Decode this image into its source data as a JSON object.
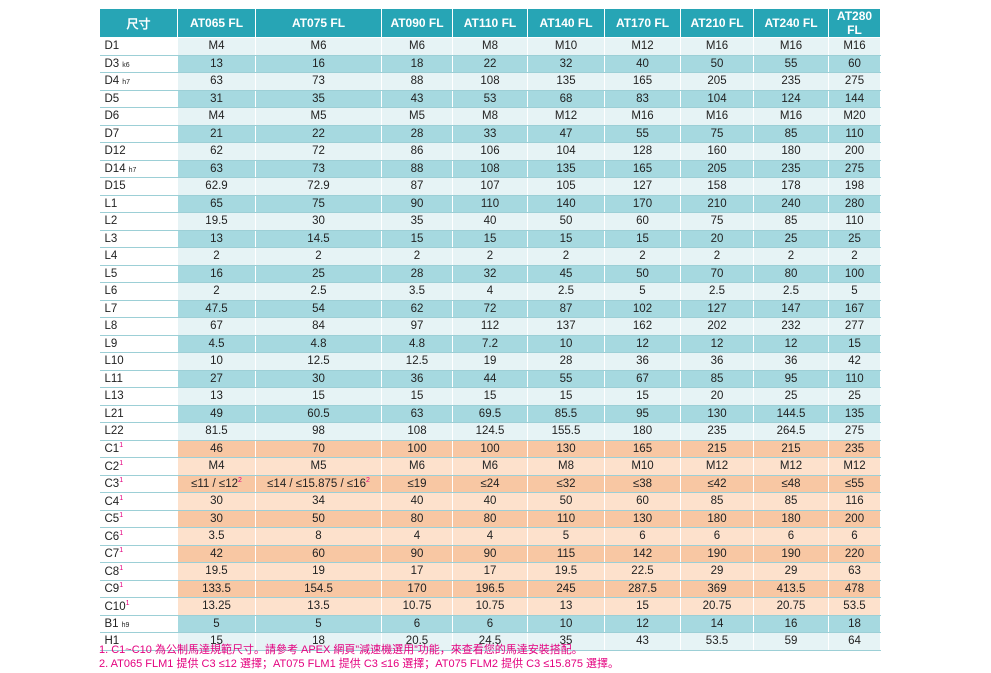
{
  "table": {
    "header": [
      "尺寸",
      "AT065 FL",
      "AT075 FL",
      "AT090 FL",
      "AT110 FL",
      "AT140 FL",
      "AT170 FL",
      "AT210 FL",
      "AT240 FL",
      "AT280 FL"
    ],
    "rows": [
      {
        "label": {
          "name": "D1"
        },
        "cells": [
          "M4",
          "M6",
          "M6",
          "M8",
          "M10",
          "M12",
          "M16",
          "M16",
          "M16"
        ]
      },
      {
        "label": {
          "name": "D3",
          "sub": "k6"
        },
        "cells": [
          "13",
          "16",
          "18",
          "22",
          "32",
          "40",
          "50",
          "55",
          "60"
        ]
      },
      {
        "label": {
          "name": "D4",
          "sub": "h7"
        },
        "cells": [
          "63",
          "73",
          "88",
          "108",
          "135",
          "165",
          "205",
          "235",
          "275"
        ]
      },
      {
        "label": {
          "name": "D5"
        },
        "cells": [
          "31",
          "35",
          "43",
          "53",
          "68",
          "83",
          "104",
          "124",
          "144"
        ]
      },
      {
        "label": {
          "name": "D6"
        },
        "cells": [
          "M4",
          "M5",
          "M5",
          "M8",
          "M12",
          "M16",
          "M16",
          "M16",
          "M20"
        ]
      },
      {
        "label": {
          "name": "D7"
        },
        "cells": [
          "21",
          "22",
          "28",
          "33",
          "47",
          "55",
          "75",
          "85",
          "110"
        ]
      },
      {
        "label": {
          "name": "D12"
        },
        "cells": [
          "62",
          "72",
          "86",
          "106",
          "104",
          "128",
          "160",
          "180",
          "200"
        ]
      },
      {
        "label": {
          "name": "D14",
          "sub": "h7"
        },
        "cells": [
          "63",
          "73",
          "88",
          "108",
          "135",
          "165",
          "205",
          "235",
          "275"
        ]
      },
      {
        "label": {
          "name": "D15"
        },
        "cells": [
          "62.9",
          "72.9",
          "87",
          "107",
          "105",
          "127",
          "158",
          "178",
          "198"
        ]
      },
      {
        "label": {
          "name": "L1"
        },
        "cells": [
          "65",
          "75",
          "90",
          "110",
          "140",
          "170",
          "210",
          "240",
          "280"
        ]
      },
      {
        "label": {
          "name": "L2"
        },
        "cells": [
          "19.5",
          "30",
          "35",
          "40",
          "50",
          "60",
          "75",
          "85",
          "110"
        ]
      },
      {
        "label": {
          "name": "L3"
        },
        "cells": [
          "13",
          "14.5",
          "15",
          "15",
          "15",
          "15",
          "20",
          "25",
          "25"
        ]
      },
      {
        "label": {
          "name": "L4"
        },
        "cells": [
          "2",
          "2",
          "2",
          "2",
          "2",
          "2",
          "2",
          "2",
          "2"
        ]
      },
      {
        "label": {
          "name": "L5"
        },
        "cells": [
          "16",
          "25",
          "28",
          "32",
          "45",
          "50",
          "70",
          "80",
          "100"
        ]
      },
      {
        "label": {
          "name": "L6"
        },
        "cells": [
          "2",
          "2.5",
          "3.5",
          "4",
          "2.5",
          "5",
          "2.5",
          "2.5",
          "5"
        ]
      },
      {
        "label": {
          "name": "L7"
        },
        "cells": [
          "47.5",
          "54",
          "62",
          "72",
          "87",
          "102",
          "127",
          "147",
          "167"
        ]
      },
      {
        "label": {
          "name": "L8"
        },
        "cells": [
          "67",
          "84",
          "97",
          "112",
          "137",
          "162",
          "202",
          "232",
          "277"
        ]
      },
      {
        "label": {
          "name": "L9"
        },
        "cells": [
          "4.5",
          "4.8",
          "4.8",
          "7.2",
          "10",
          "12",
          "12",
          "12",
          "15"
        ]
      },
      {
        "label": {
          "name": "L10"
        },
        "cells": [
          "10",
          "12.5",
          "12.5",
          "19",
          "28",
          "36",
          "36",
          "36",
          "42"
        ]
      },
      {
        "label": {
          "name": "L11"
        },
        "cells": [
          "27",
          "30",
          "36",
          "44",
          "55",
          "67",
          "85",
          "95",
          "110"
        ]
      },
      {
        "label": {
          "name": "L13"
        },
        "cells": [
          "13",
          "15",
          "15",
          "15",
          "15",
          "15",
          "20",
          "25",
          "25"
        ]
      },
      {
        "label": {
          "name": "L21"
        },
        "cells": [
          "49",
          "60.5",
          "63",
          "69.5",
          "85.5",
          "95",
          "130",
          "144.5",
          "135"
        ]
      },
      {
        "label": {
          "name": "L22"
        },
        "cells": [
          "81.5",
          "98",
          "108",
          "124.5",
          "155.5",
          "180",
          "235",
          "264.5",
          "275"
        ]
      },
      {
        "label": {
          "name": "C1",
          "sup": "1"
        },
        "group": "c",
        "cells": [
          "46",
          "70",
          "100",
          "100",
          "130",
          "165",
          "215",
          "215",
          "235"
        ]
      },
      {
        "label": {
          "name": "C2",
          "sup": "1"
        },
        "group": "c",
        "cells": [
          "M4",
          "M5",
          "M6",
          "M6",
          "M8",
          "M10",
          "M12",
          "M12",
          "M12"
        ]
      },
      {
        "label": {
          "name": "C3",
          "sup": "1"
        },
        "group": "c",
        "cells": [
          {
            "text": "≤11 / ≤12",
            "sup": "2"
          },
          {
            "text": "≤14 / ≤15.875 / ≤16",
            "sup": "2"
          },
          "≤19",
          "≤24",
          "≤32",
          "≤38",
          "≤42",
          "≤48",
          "≤55"
        ]
      },
      {
        "label": {
          "name": "C4",
          "sup": "1"
        },
        "group": "c",
        "cells": [
          "30",
          "34",
          "40",
          "40",
          "50",
          "60",
          "85",
          "85",
          "116"
        ]
      },
      {
        "label": {
          "name": "C5",
          "sup": "1"
        },
        "group": "c",
        "cells": [
          "30",
          "50",
          "80",
          "80",
          "110",
          "130",
          "180",
          "180",
          "200"
        ]
      },
      {
        "label": {
          "name": "C6",
          "sup": "1"
        },
        "group": "c",
        "cells": [
          "3.5",
          "8",
          "4",
          "4",
          "5",
          "6",
          "6",
          "6",
          "6"
        ]
      },
      {
        "label": {
          "name": "C7",
          "sup": "1"
        },
        "group": "c",
        "cells": [
          "42",
          "60",
          "90",
          "90",
          "115",
          "142",
          "190",
          "190",
          "220"
        ]
      },
      {
        "label": {
          "name": "C8",
          "sup": "1"
        },
        "group": "c",
        "cells": [
          "19.5",
          "19",
          "17",
          "17",
          "19.5",
          "22.5",
          "29",
          "29",
          "63"
        ]
      },
      {
        "label": {
          "name": "C9",
          "sup": "1"
        },
        "group": "c",
        "cells": [
          "133.5",
          "154.5",
          "170",
          "196.5",
          "245",
          "287.5",
          "369",
          "413.5",
          "478"
        ]
      },
      {
        "label": {
          "name": "C10",
          "sup": "1"
        },
        "group": "c",
        "cells": [
          "13.25",
          "13.5",
          "10.75",
          "10.75",
          "13",
          "15",
          "20.75",
          "20.75",
          "53.5"
        ]
      },
      {
        "label": {
          "name": "B1",
          "sub": "h9"
        },
        "cells": [
          "5",
          "5",
          "6",
          "6",
          "10",
          "12",
          "14",
          "16",
          "18"
        ]
      },
      {
        "label": {
          "name": "H1"
        },
        "cells": [
          "15",
          "18",
          "20.5",
          "24.5",
          "35",
          "43",
          "53.5",
          "59",
          "64"
        ]
      }
    ]
  },
  "footnotes": [
    "1. C1~C10 為公制馬達規範尺寸。請參考 APEX 網頁”減速機選用”功能，來查看您的馬達安裝搭配。",
    "2. AT065 FLM1 提供 C3 ≤12 選擇；AT075 FLM1 提供 C3 ≤16 選擇；AT075 FLM2 提供 C3 ≤15.875 選擇。"
  ]
}
